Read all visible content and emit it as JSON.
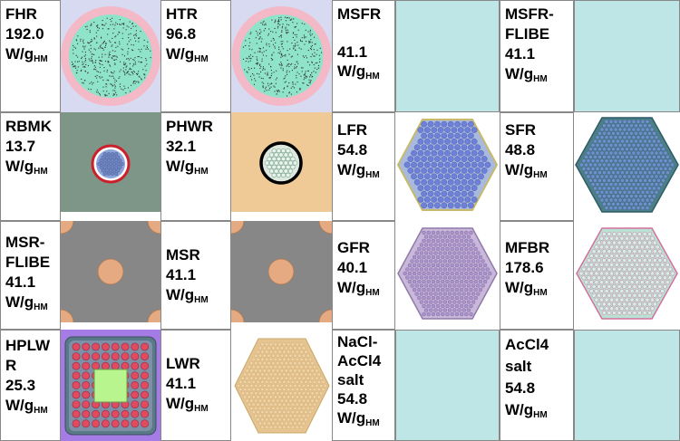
{
  "unit": {
    "base": "W/g",
    "sub": "HM"
  },
  "cells": {
    "fhr": {
      "name": [
        "FHR"
      ],
      "value": "192.0"
    },
    "htr": {
      "name": [
        "HTR"
      ],
      "value": "96.8"
    },
    "msfr": {
      "name": [
        "MSFR"
      ],
      "value": "41.1"
    },
    "msfrflibe": {
      "name": [
        "MSFR-",
        "FLIBE"
      ],
      "value": "41.1"
    },
    "rbmk": {
      "name": [
        "RBMK"
      ],
      "value": "13.7"
    },
    "phwr": {
      "name": [
        "PHWR"
      ],
      "value": "32.1"
    },
    "lfr": {
      "name": [
        "LFR"
      ],
      "value": "54.8"
    },
    "sfr": {
      "name": [
        "SFR"
      ],
      "value": "48.8"
    },
    "msrflibe": {
      "name": [
        "MSR-",
        "FLIBE"
      ],
      "value": "41.1"
    },
    "msr": {
      "name": [
        "MSR"
      ],
      "value": "41.1"
    },
    "gfr": {
      "name": [
        "GFR"
      ],
      "value": "40.1"
    },
    "mfbr": {
      "name": [
        "MFBR"
      ],
      "value": "178.6"
    },
    "hplwr": {
      "name": [
        "HPLW",
        "R"
      ],
      "value": "25.3"
    },
    "lwr": {
      "name": [
        "LWR"
      ],
      "value": "41.1"
    },
    "nacl": {
      "name": [
        "NaCl-",
        "AcCl4",
        "salt"
      ],
      "value": "54.8"
    },
    "accl4": {
      "name": [
        "AcCl4",
        "salt"
      ],
      "value": "54.8"
    }
  }
}
